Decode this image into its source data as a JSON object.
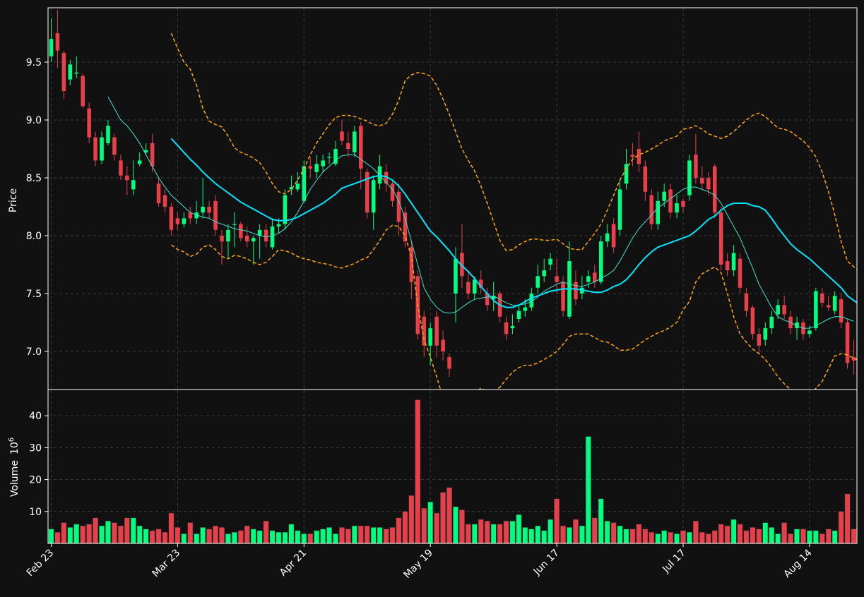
{
  "colors": {
    "background": "#111111",
    "up": "#00ff7f",
    "down": "#e8404a",
    "grid": "#3a3a3a",
    "axis": "#ffffff",
    "ma_fast": "#40e0d0",
    "ma_slow": "#00e5ff",
    "bollinger": "#ffa500"
  },
  "chart_data": {
    "type": "candlestick",
    "price_panel": {
      "ylabel": "Price",
      "ylim": [
        6.67,
        9.97
      ],
      "yticks": [
        7.0,
        7.5,
        8.0,
        8.5,
        9.0,
        9.5
      ],
      "grid": true
    },
    "volume_panel": {
      "ylabel": "Volume",
      "ylabel_unit": "10",
      "ylabel_exp": "6",
      "ylim": [
        0,
        48
      ],
      "yticks": [
        10,
        20,
        30,
        40
      ],
      "grid": true
    },
    "xticks": [
      {
        "index": 0,
        "label": "Feb 23"
      },
      {
        "index": 20,
        "label": "Mar 23"
      },
      {
        "index": 40,
        "label": "Apr 21"
      },
      {
        "index": 60,
        "label": "May 19"
      },
      {
        "index": 80,
        "label": "Jun 17"
      },
      {
        "index": 100,
        "label": "Jul 17"
      },
      {
        "index": 120,
        "label": "Aug 14"
      }
    ],
    "overlays": [
      "moving average (fast)",
      "moving average (slow)",
      "Bollinger bands (upper/lower)"
    ],
    "candles": [
      [
        9.55,
        9.7,
        9.88,
        9.5,
        4.5
      ],
      [
        9.75,
        9.6,
        9.95,
        9.45,
        3.5
      ],
      [
        9.58,
        9.25,
        9.6,
        9.18,
        6.5
      ],
      [
        9.35,
        9.48,
        9.52,
        9.3,
        5.0
      ],
      [
        9.4,
        9.41,
        9.55,
        9.36,
        6.0
      ],
      [
        9.38,
        9.12,
        9.4,
        9.1,
        5.5
      ],
      [
        9.1,
        8.85,
        9.15,
        8.8,
        6.0
      ],
      [
        8.85,
        8.65,
        8.9,
        8.6,
        8.0
      ],
      [
        8.65,
        8.85,
        8.9,
        8.62,
        5.5
      ],
      [
        8.8,
        8.95,
        9.0,
        8.78,
        7.0
      ],
      [
        8.85,
        8.7,
        8.88,
        8.65,
        6.5
      ],
      [
        8.65,
        8.52,
        8.7,
        8.48,
        5.5
      ],
      [
        8.52,
        8.48,
        8.6,
        8.35,
        8.0
      ],
      [
        8.4,
        8.48,
        8.65,
        8.35,
        8.0
      ],
      [
        8.62,
        8.65,
        8.72,
        8.6,
        5.5
      ],
      [
        8.72,
        8.74,
        8.8,
        8.7,
        4.5
      ],
      [
        8.8,
        8.6,
        8.88,
        8.55,
        4.0
      ],
      [
        8.45,
        8.28,
        8.5,
        8.25,
        4.5
      ],
      [
        8.35,
        8.25,
        8.4,
        8.2,
        3.5
      ],
      [
        8.25,
        8.05,
        8.28,
        8.0,
        9.5
      ],
      [
        8.15,
        8.1,
        8.2,
        8.05,
        5.0
      ],
      [
        8.1,
        8.15,
        8.2,
        8.07,
        3.0
      ],
      [
        8.2,
        8.15,
        8.25,
        8.1,
        6.5
      ],
      [
        8.15,
        8.2,
        8.3,
        8.1,
        3.0
      ],
      [
        8.2,
        8.25,
        8.5,
        8.15,
        5.0
      ],
      [
        8.25,
        8.2,
        8.3,
        8.15,
        4.5
      ],
      [
        8.3,
        8.05,
        8.35,
        8.0,
        5.5
      ],
      [
        8.0,
        7.95,
        8.05,
        7.75,
        5.0
      ],
      [
        7.95,
        8.05,
        8.1,
        7.8,
        3.0
      ],
      [
        8.1,
        8.1,
        8.2,
        7.9,
        3.5
      ],
      [
        8.1,
        7.98,
        8.12,
        7.95,
        4.0
      ],
      [
        8.0,
        7.95,
        8.08,
        7.9,
        5.5
      ],
      [
        7.95,
        7.98,
        8.0,
        7.75,
        4.5
      ],
      [
        8.0,
        8.05,
        8.1,
        7.8,
        4.0
      ],
      [
        8.05,
        7.95,
        8.1,
        7.9,
        7.0
      ],
      [
        7.9,
        8.08,
        8.15,
        7.88,
        4.0
      ],
      [
        8.08,
        8.1,
        8.15,
        8.02,
        3.5
      ],
      [
        8.1,
        8.35,
        8.4,
        8.05,
        3.5
      ],
      [
        8.4,
        8.42,
        8.52,
        8.35,
        6.0
      ],
      [
        8.4,
        8.45,
        8.55,
        8.38,
        4.0
      ],
      [
        8.3,
        8.6,
        8.65,
        8.28,
        3.0
      ],
      [
        8.6,
        8.58,
        8.68,
        8.5,
        3.0
      ],
      [
        8.55,
        8.62,
        8.7,
        8.5,
        4.0
      ],
      [
        8.6,
        8.65,
        8.7,
        8.55,
        4.5
      ],
      [
        8.68,
        8.68,
        8.72,
        8.62,
        5.0
      ],
      [
        8.62,
        8.75,
        8.82,
        8.6,
        3.0
      ],
      [
        8.9,
        8.82,
        9.0,
        8.78,
        5.0
      ],
      [
        8.8,
        8.75,
        8.9,
        8.68,
        4.5
      ],
      [
        8.72,
        8.9,
        8.95,
        8.68,
        5.5
      ],
      [
        8.95,
        8.58,
        8.98,
        8.4,
        5.5
      ],
      [
        8.55,
        8.2,
        8.58,
        8.15,
        5.5
      ],
      [
        8.2,
        8.48,
        8.52,
        8.05,
        5.0
      ],
      [
        8.45,
        8.6,
        8.7,
        8.4,
        5.0
      ],
      [
        8.55,
        8.45,
        8.62,
        8.38,
        4.5
      ],
      [
        8.45,
        8.3,
        8.48,
        8.25,
        5.0
      ],
      [
        8.38,
        8.12,
        8.45,
        8.0,
        8.0
      ],
      [
        8.2,
        7.95,
        8.25,
        7.9,
        10.0
      ],
      [
        7.9,
        7.6,
        7.95,
        7.45,
        15.0
      ],
      [
        7.65,
        7.15,
        7.7,
        7.1,
        45.0
      ],
      [
        7.3,
        7.05,
        7.35,
        6.95,
        11.0
      ],
      [
        7.05,
        7.2,
        7.25,
        6.88,
        13.0
      ],
      [
        7.3,
        7.05,
        7.35,
        6.95,
        9.5
      ],
      [
        7.1,
        7.0,
        7.18,
        6.92,
        16.0
      ],
      [
        6.95,
        6.85,
        6.98,
        6.78,
        17.5
      ],
      [
        7.5,
        7.8,
        7.9,
        7.25,
        11.5
      ],
      [
        7.85,
        7.65,
        8.1,
        7.55,
        10.5
      ],
      [
        7.6,
        7.5,
        7.7,
        7.45,
        6.0
      ],
      [
        7.5,
        7.62,
        7.65,
        7.45,
        6.0
      ],
      [
        7.62,
        7.55,
        7.7,
        7.5,
        7.5
      ],
      [
        7.5,
        7.4,
        7.55,
        7.35,
        7.0
      ],
      [
        7.45,
        7.48,
        7.6,
        7.35,
        6.0
      ],
      [
        7.5,
        7.3,
        7.52,
        7.25,
        6.0
      ],
      [
        7.25,
        7.15,
        7.3,
        7.1,
        7.0
      ],
      [
        7.2,
        7.22,
        7.32,
        7.15,
        7.0
      ],
      [
        7.28,
        7.35,
        7.4,
        7.25,
        9.0
      ],
      [
        7.35,
        7.38,
        7.45,
        7.3,
        5.0
      ],
      [
        7.38,
        7.5,
        7.55,
        7.35,
        4.5
      ],
      [
        7.55,
        7.65,
        7.75,
        7.5,
        5.5
      ],
      [
        7.65,
        7.7,
        7.8,
        7.6,
        4.0
      ],
      [
        7.75,
        7.8,
        7.85,
        7.7,
        7.5
      ],
      [
        7.65,
        7.6,
        7.8,
        7.5,
        14.0
      ],
      [
        7.6,
        7.35,
        7.65,
        7.3,
        5.5
      ],
      [
        7.3,
        7.78,
        7.95,
        7.28,
        5.0
      ],
      [
        7.6,
        7.45,
        7.7,
        7.4,
        7.5
      ],
      [
        7.5,
        7.55,
        7.65,
        7.45,
        5.5
      ],
      [
        7.6,
        7.65,
        7.7,
        7.55,
        33.5
      ],
      [
        7.68,
        7.6,
        7.75,
        7.55,
        8.0
      ],
      [
        7.6,
        7.95,
        8.0,
        7.58,
        14.0
      ],
      [
        7.95,
        8.02,
        8.1,
        7.9,
        7.0
      ],
      [
        8.1,
        7.9,
        8.15,
        7.85,
        6.5
      ],
      [
        8.05,
        8.4,
        8.48,
        8.0,
        5.5
      ],
      [
        8.45,
        8.62,
        8.75,
        8.4,
        4.5
      ],
      [
        8.7,
        8.68,
        8.8,
        8.6,
        4.5
      ],
      [
        8.75,
        8.62,
        8.9,
        8.55,
        6.0
      ],
      [
        8.6,
        8.38,
        8.65,
        8.3,
        4.5
      ],
      [
        8.35,
        8.1,
        8.4,
        8.05,
        3.5
      ],
      [
        8.1,
        8.3,
        8.38,
        8.05,
        3.0
      ],
      [
        8.3,
        8.38,
        8.45,
        8.25,
        4.0
      ],
      [
        8.4,
        8.2,
        8.45,
        8.15,
        3.5
      ],
      [
        8.2,
        8.28,
        8.35,
        8.15,
        3.0
      ],
      [
        8.3,
        8.25,
        8.32,
        8.2,
        4.0
      ],
      [
        8.35,
        8.65,
        8.7,
        8.3,
        3.5
      ],
      [
        8.7,
        8.5,
        8.88,
        8.45,
        7.0
      ],
      [
        8.5,
        8.45,
        8.6,
        8.4,
        3.5
      ],
      [
        8.5,
        8.4,
        8.55,
        8.35,
        3.0
      ],
      [
        8.6,
        8.2,
        8.62,
        8.15,
        4.0
      ],
      [
        8.2,
        7.75,
        8.25,
        7.7,
        6.0
      ],
      [
        7.78,
        7.7,
        7.85,
        7.65,
        5.5
      ],
      [
        7.7,
        7.85,
        7.92,
        7.65,
        7.5
      ],
      [
        7.8,
        7.55,
        7.85,
        7.5,
        6.0
      ],
      [
        7.5,
        7.35,
        7.55,
        7.3,
        4.0
      ],
      [
        7.38,
        7.15,
        7.4,
        7.1,
        5.0
      ],
      [
        7.15,
        7.05,
        7.2,
        6.98,
        4.5
      ],
      [
        7.1,
        7.2,
        7.25,
        7.05,
        6.5
      ],
      [
        7.2,
        7.3,
        7.35,
        7.15,
        5.0
      ],
      [
        7.32,
        7.4,
        7.45,
        7.28,
        3.0
      ],
      [
        7.4,
        7.32,
        7.48,
        7.28,
        6.5
      ],
      [
        7.3,
        7.2,
        7.35,
        7.15,
        3.0
      ],
      [
        7.2,
        7.25,
        7.3,
        7.1,
        4.5
      ],
      [
        7.25,
        7.15,
        7.28,
        7.1,
        4.5
      ],
      [
        7.15,
        7.18,
        7.22,
        7.12,
        4.0
      ],
      [
        7.2,
        7.52,
        7.55,
        7.18,
        4.0
      ],
      [
        7.5,
        7.42,
        7.55,
        7.38,
        3.0
      ],
      [
        7.4,
        7.38,
        7.48,
        7.35,
        4.5
      ],
      [
        7.35,
        7.48,
        7.52,
        7.32,
        4.0
      ],
      [
        7.45,
        7.25,
        7.5,
        7.2,
        10.0
      ],
      [
        7.25,
        6.9,
        7.28,
        6.85,
        15.5
      ],
      [
        6.95,
        6.92,
        7.1,
        6.8,
        4.5
      ]
    ],
    "ma_fast": [
      null,
      null,
      null,
      null,
      null,
      null,
      null,
      null,
      null,
      9.2,
      9.1,
      9.0,
      8.95,
      8.88,
      8.8,
      8.7,
      8.6,
      8.5,
      8.42,
      8.35,
      8.3,
      8.25,
      8.2,
      8.18,
      8.16,
      8.15,
      8.12,
      8.1,
      8.08,
      8.06,
      8.05,
      8.04,
      8.02,
      8.0,
      7.99,
      8.0,
      8.02,
      8.06,
      8.12,
      8.2,
      8.3,
      8.4,
      8.48,
      8.55,
      8.6,
      8.65,
      8.69,
      8.7,
      8.7,
      8.66,
      8.62,
      8.58,
      8.52,
      8.46,
      8.4,
      8.3,
      8.15,
      7.95,
      7.75,
      7.55,
      7.45,
      7.38,
      7.34,
      7.33,
      7.34,
      7.38,
      7.42,
      7.45,
      7.46,
      7.47,
      7.48,
      7.45,
      7.42,
      7.4,
      7.4,
      7.41,
      7.43,
      7.47,
      7.52,
      7.55,
      7.58,
      7.6,
      7.58,
      7.57,
      7.56,
      7.58,
      7.6,
      7.63,
      7.66,
      7.7,
      7.78,
      7.88,
      7.98,
      8.06,
      8.12,
      8.18,
      8.24,
      8.28,
      8.32,
      8.36,
      8.4,
      8.42,
      8.42,
      8.4,
      8.38,
      8.35,
      8.28,
      8.18,
      8.08,
      7.98,
      7.85,
      7.72,
      7.58,
      7.48,
      7.38,
      7.3,
      7.27,
      7.25,
      7.22,
      7.2,
      7.2,
      7.22,
      7.25,
      7.28,
      7.3,
      7.3,
      7.28,
      7.26
    ],
    "ma_slow": [
      null,
      null,
      null,
      null,
      null,
      null,
      null,
      null,
      null,
      null,
      null,
      null,
      null,
      null,
      null,
      null,
      null,
      null,
      null,
      8.84,
      8.78,
      8.72,
      8.66,
      8.61,
      8.55,
      8.5,
      8.45,
      8.41,
      8.37,
      8.33,
      8.29,
      8.26,
      8.23,
      8.2,
      8.17,
      8.14,
      8.13,
      8.13,
      8.14,
      8.16,
      8.19,
      8.22,
      8.25,
      8.28,
      8.32,
      8.36,
      8.41,
      8.43,
      8.45,
      8.47,
      8.49,
      8.51,
      8.52,
      8.51,
      8.48,
      8.43,
      8.36,
      8.28,
      8.2,
      8.12,
      8.04,
      7.99,
      7.93,
      7.87,
      7.8,
      7.74,
      7.69,
      7.63,
      7.56,
      7.5,
      7.44,
      7.4,
      7.38,
      7.38,
      7.4,
      7.43,
      7.46,
      7.48,
      7.5,
      7.52,
      7.53,
      7.54,
      7.54,
      7.54,
      7.53,
      7.52,
      7.51,
      7.51,
      7.53,
      7.56,
      7.58,
      7.62,
      7.68,
      7.75,
      7.81,
      7.86,
      7.9,
      7.92,
      7.94,
      7.96,
      7.98,
      8.0,
      8.04,
      8.09,
      8.14,
      8.17,
      8.22,
      8.26,
      8.28,
      8.28,
      8.28,
      8.26,
      8.25,
      8.22,
      8.15,
      8.07,
      8.0,
      7.93,
      7.88,
      7.84,
      7.8,
      7.75,
      7.7,
      7.65,
      7.6,
      7.55,
      7.48,
      7.44,
      7.4,
      7.37,
      7.35
    ],
    "bb_upper": [
      null,
      null,
      null,
      null,
      null,
      null,
      null,
      null,
      null,
      null,
      null,
      null,
      null,
      null,
      null,
      null,
      null,
      null,
      null,
      9.75,
      9.62,
      9.5,
      9.44,
      9.3,
      9.1,
      8.99,
      8.96,
      8.94,
      8.86,
      8.76,
      8.72,
      8.7,
      8.67,
      8.63,
      8.55,
      8.45,
      8.38,
      8.36,
      8.4,
      8.48,
      8.58,
      8.7,
      8.8,
      8.88,
      8.96,
      9.02,
      9.04,
      9.04,
      9.03,
      9.01,
      8.99,
      8.96,
      8.95,
      8.97,
      9.05,
      9.17,
      9.34,
      9.39,
      9.41,
      9.4,
      9.38,
      9.3,
      9.18,
      9.05,
      8.9,
      8.75,
      8.65,
      8.56,
      8.43,
      8.28,
      8.12,
      7.96,
      7.87,
      7.88,
      7.92,
      7.95,
      7.97,
      7.97,
      7.96,
      7.96,
      7.97,
      7.93,
      7.89,
      7.88,
      7.88,
      7.95,
      8.02,
      8.1,
      8.22,
      8.35,
      8.48,
      8.58,
      8.66,
      8.7,
      8.72,
      8.75,
      8.78,
      8.82,
      8.84,
      8.86,
      8.92,
      8.93,
      8.95,
      8.92,
      8.88,
      8.86,
      8.84,
      8.86,
      8.9,
      8.95,
      9.0,
      9.04,
      9.06,
      9.03,
      8.98,
      8.93,
      8.92,
      8.9,
      8.86,
      8.82,
      8.76,
      8.68,
      8.55,
      8.38,
      8.18,
      7.95,
      7.78,
      7.73,
      7.69
    ],
    "bb_lower": [
      null,
      null,
      null,
      null,
      null,
      null,
      null,
      null,
      null,
      null,
      null,
      null,
      null,
      null,
      null,
      null,
      null,
      null,
      null,
      7.92,
      7.88,
      7.86,
      7.82,
      7.84,
      7.9,
      7.92,
      7.88,
      7.82,
      7.8,
      7.83,
      7.82,
      7.8,
      7.77,
      7.75,
      7.77,
      7.82,
      7.88,
      7.87,
      7.85,
      7.82,
      7.8,
      7.79,
      7.77,
      7.76,
      7.75,
      7.73,
      7.72,
      7.74,
      7.76,
      7.79,
      7.81,
      7.88,
      7.96,
      8.05,
      8.09,
      8.08,
      8.0,
      7.82,
      7.4,
      7.1,
      6.95,
      6.78,
      6.6,
      6.5,
      6.46,
      6.48,
      6.58,
      6.65,
      6.68,
      6.66,
      6.65,
      6.69,
      6.76,
      6.82,
      6.86,
      6.88,
      6.88,
      6.9,
      6.93,
      6.96,
      7.0,
      7.06,
      7.13,
      7.15,
      7.15,
      7.15,
      7.12,
      7.09,
      7.08,
      7.05,
      7.01,
      7.01,
      7.02,
      7.06,
      7.1,
      7.13,
      7.16,
      7.18,
      7.21,
      7.25,
      7.36,
      7.43,
      7.6,
      7.67,
      7.7,
      7.73,
      7.68,
      7.5,
      7.3,
      7.15,
      7.08,
      7.02,
      6.98,
      6.93,
      6.86,
      6.78,
      6.72,
      6.67,
      6.62,
      6.6,
      6.62,
      6.68,
      6.74,
      6.85,
      6.96,
      6.98,
      6.97,
      6.94,
      6.92
    ]
  }
}
